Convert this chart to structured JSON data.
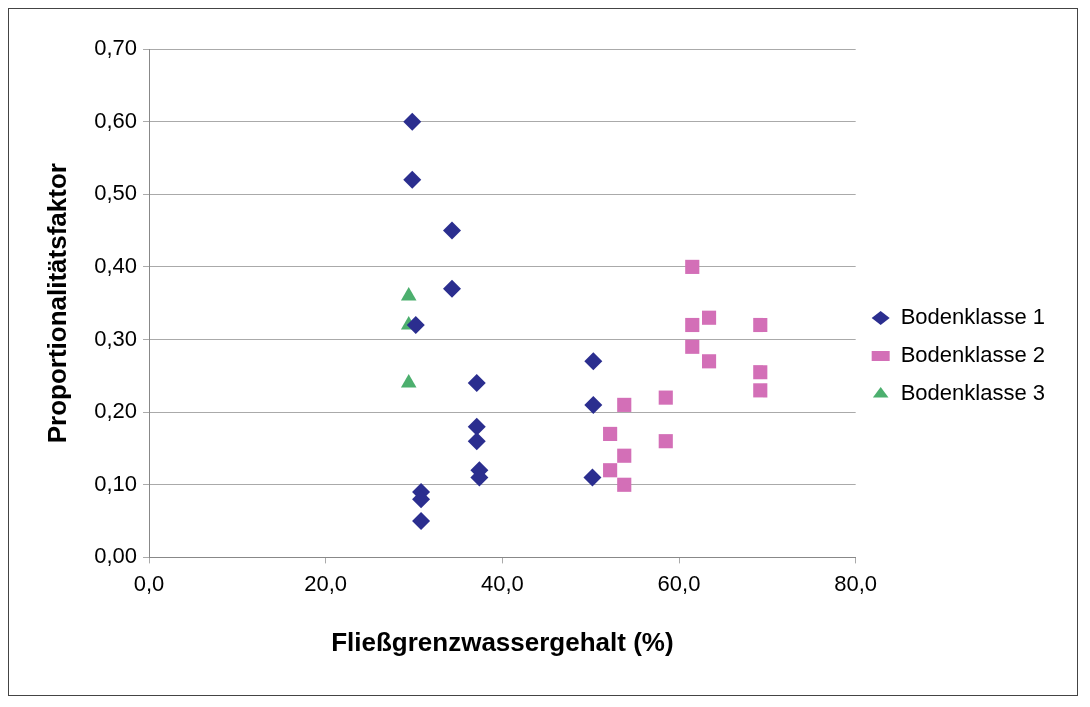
{
  "chart_data": {
    "type": "scatter",
    "xlabel": "Fließgrenzwassergehalt (%)",
    "ylabel": "Proportionalitätsfaktor",
    "xlim": [
      0,
      80
    ],
    "xticks": [
      {
        "value": 0,
        "label": "0,0"
      },
      {
        "value": 20,
        "label": "20,0"
      },
      {
        "value": 40,
        "label": "40,0"
      },
      {
        "value": 60,
        "label": "60,0"
      },
      {
        "value": 80,
        "label": "80,0"
      }
    ],
    "ylim": [
      0,
      0.7
    ],
    "yticks": [
      {
        "value": 0,
        "label": "0,00"
      },
      {
        "value": 0.1,
        "label": "0,10"
      },
      {
        "value": 0.2,
        "label": "0,20"
      },
      {
        "value": 0.3,
        "label": "0,30"
      },
      {
        "value": 0.4,
        "label": "0,40"
      },
      {
        "value": 0.5,
        "label": "0,50"
      },
      {
        "value": 0.6,
        "label": "0,60"
      },
      {
        "value": 0.7,
        "label": "0,70"
      }
    ],
    "grid": "y",
    "legend": "right",
    "series": [
      {
        "name": "Bodenklasse 1",
        "color": "#2b2e8f",
        "marker": "diamond",
        "x": [
          29.8,
          29.8,
          34.3,
          34.3,
          30.2,
          37.1,
          37.1,
          37.1,
          37.4,
          37.4,
          30.8,
          30.8,
          30.8,
          50.3,
          50.3,
          50.2
        ],
        "values": [
          0.6,
          0.52,
          0.45,
          0.37,
          0.32,
          0.24,
          0.18,
          0.16,
          0.12,
          0.11,
          0.09,
          0.08,
          0.05,
          0.27,
          0.21,
          0.11
        ]
      },
      {
        "name": "Bodenklasse 2",
        "color": "#d36fb7",
        "marker": "square",
        "x": [
          61.5,
          63.4,
          61.5,
          61.5,
          63.4,
          69.2,
          69.2,
          69.2,
          53.8,
          58.5,
          52.2,
          58.5,
          53.8,
          52.2,
          53.8
        ],
        "values": [
          0.4,
          0.33,
          0.32,
          0.29,
          0.27,
          0.32,
          0.255,
          0.23,
          0.21,
          0.22,
          0.17,
          0.16,
          0.14,
          0.12,
          0.1
        ]
      },
      {
        "name": "Bodenklasse 3",
        "color": "#4caf6e",
        "marker": "triangle",
        "x": [
          29.4,
          29.4,
          29.4
        ],
        "values": [
          0.36,
          0.32,
          0.24
        ]
      }
    ]
  }
}
